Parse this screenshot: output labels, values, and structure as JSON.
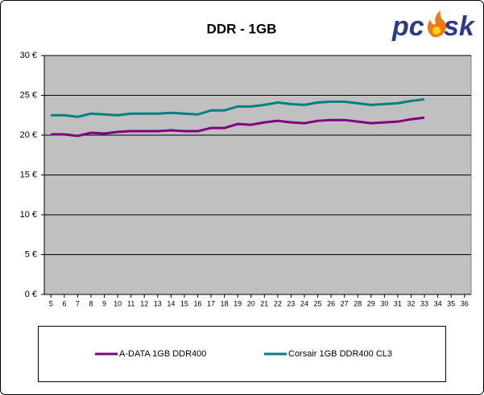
{
  "logo": [
    "pc",
    "sk"
  ],
  "chart_data": {
    "type": "line",
    "title": "DDR - 1GB",
    "x": [
      5,
      6,
      7,
      8,
      9,
      10,
      11,
      12,
      13,
      14,
      15,
      16,
      17,
      18,
      19,
      20,
      21,
      22,
      23,
      24,
      25,
      26,
      27,
      28,
      29,
      30,
      31,
      32,
      33
    ],
    "xlim": [
      4.5,
      36.5
    ],
    "xticks": [
      5,
      6,
      7,
      8,
      9,
      10,
      11,
      12,
      13,
      14,
      15,
      16,
      17,
      18,
      19,
      20,
      21,
      22,
      23,
      24,
      25,
      26,
      27,
      28,
      29,
      30,
      31,
      32,
      33,
      34,
      35,
      36
    ],
    "ylim": [
      0,
      30
    ],
    "yticks": [
      {
        "value": 0,
        "label": "0 €"
      },
      {
        "value": 5,
        "label": "5 €"
      },
      {
        "value": 10,
        "label": "10 €"
      },
      {
        "value": 15,
        "label": "15 €"
      },
      {
        "value": 20,
        "label": "20 €"
      },
      {
        "value": 25,
        "label": "25 €"
      },
      {
        "value": 30,
        "label": "30 €"
      }
    ],
    "grid": true,
    "legend": "bottom",
    "series": [
      {
        "name": "A-DATA 1GB DDR400",
        "color": "#800080",
        "values": [
          20.1,
          20.1,
          19.9,
          20.3,
          20.2,
          20.4,
          20.5,
          20.5,
          20.5,
          20.6,
          20.5,
          20.5,
          20.9,
          20.9,
          21.4,
          21.3,
          21.6,
          21.8,
          21.6,
          21.5,
          21.8,
          21.9,
          21.9,
          21.7,
          21.5,
          21.6,
          21.7,
          22.0,
          22.2
        ]
      },
      {
        "name": "Corsair 1GB DDR400 CL3",
        "color": "#008080",
        "values": [
          22.5,
          22.5,
          22.3,
          22.7,
          22.6,
          22.5,
          22.7,
          22.7,
          22.7,
          22.8,
          22.7,
          22.6,
          23.1,
          23.1,
          23.6,
          23.6,
          23.8,
          24.1,
          23.9,
          23.8,
          24.1,
          24.2,
          24.2,
          24.0,
          23.8,
          23.9,
          24.0,
          24.3,
          24.5
        ]
      }
    ]
  }
}
